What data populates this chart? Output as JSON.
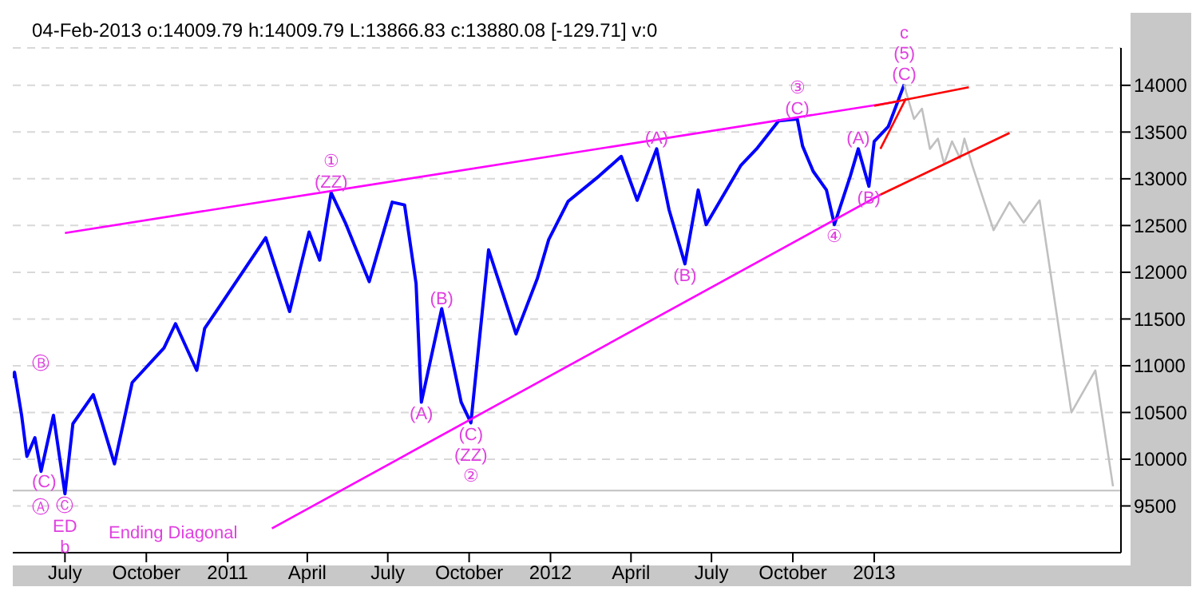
{
  "chart_data": {
    "type": "line",
    "title": "04-Feb-2013  o:14009.79 h:14009.79 L:13866.83 c:13880.08 [-129.71] v:0",
    "xlim": [
      "2010-05-03",
      "2013-10-07"
    ],
    "ylim": [
      9000,
      14400
    ],
    "xticks": [
      {
        "value": "2010-07-01",
        "label": "July"
      },
      {
        "value": "2010-10-01",
        "label": "October"
      },
      {
        "value": "2011-01-01",
        "label": "2011"
      },
      {
        "value": "2011-04-01",
        "label": "April"
      },
      {
        "value": "2011-07-01",
        "label": "July"
      },
      {
        "value": "2011-10-01",
        "label": "October"
      },
      {
        "value": "2012-01-01",
        "label": "2012"
      },
      {
        "value": "2012-04-01",
        "label": "April"
      },
      {
        "value": "2012-07-01",
        "label": "July"
      },
      {
        "value": "2012-10-01",
        "label": "October"
      },
      {
        "value": "2013-01-01",
        "label": "2013"
      }
    ],
    "yticks": [
      9500,
      10000,
      10500,
      11000,
      11500,
      12000,
      12500,
      13000,
      13500,
      14000
    ],
    "grid": "y",
    "legend": false,
    "marker": "none",
    "line_style": "solid",
    "series": [
      {
        "color": "#0000ff",
        "x": [
          "2010-05-03",
          "2010-05-05",
          "2010-05-13",
          "2010-05-19",
          "2010-05-28",
          "2010-06-04",
          "2010-06-18",
          "2010-07-01",
          "2010-07-10",
          "2010-08-02",
          "2010-08-11",
          "2010-08-26",
          "2010-09-15",
          "2010-10-21",
          "2010-11-03",
          "2010-11-27",
          "2010-12-06",
          "2010-12-21",
          "2011-02-13",
          "2011-03-12",
          "2011-04-03",
          "2011-04-15",
          "2011-04-28",
          "2011-05-14",
          "2011-06-10",
          "2011-07-06",
          "2011-07-20",
          "2011-08-02",
          "2011-08-08",
          "2011-08-31",
          "2011-09-22",
          "2011-10-03",
          "2011-10-23",
          "2011-11-23",
          "2011-12-17",
          "2011-12-30",
          "2012-01-21",
          "2012-02-25",
          "2012-03-21",
          "2012-04-08",
          "2012-04-30",
          "2012-05-14",
          "2012-06-01",
          "2012-06-16",
          "2012-06-25",
          "2012-08-03",
          "2012-08-21",
          "2012-09-15",
          "2012-10-06",
          "2012-10-12",
          "2012-10-24",
          "2012-11-08",
          "2012-11-17",
          "2012-12-05",
          "2012-12-14",
          "2012-12-26",
          "2013-01-01",
          "2013-01-17",
          "2013-02-04"
        ],
        "values": [
          10870,
          10930,
          10470,
          10030,
          10230,
          9870,
          10470,
          9630,
          10380,
          10690,
          10420,
          9950,
          10820,
          11190,
          11450,
          10950,
          11400,
          11610,
          12370,
          11580,
          12430,
          12130,
          12850,
          12530,
          11900,
          12750,
          12720,
          11880,
          10610,
          11610,
          10610,
          10390,
          12240,
          11340,
          11930,
          12350,
          12760,
          13030,
          13240,
          12770,
          13320,
          12670,
          12090,
          12880,
          12510,
          13140,
          13320,
          13620,
          13640,
          13350,
          13080,
          12880,
          12510,
          13030,
          13320,
          12920,
          13400,
          13560,
          14010
        ]
      },
      {
        "color": "#c0c0c0",
        "x": [
          "2013-02-04",
          "2013-02-06",
          "2013-02-15",
          "2013-02-24",
          "2013-03-05",
          "2013-03-14",
          "2013-03-21",
          "2013-03-30",
          "2013-04-08",
          "2013-04-13",
          "2013-04-22",
          "2013-05-16",
          "2013-06-03",
          "2013-06-19",
          "2013-07-07",
          "2013-08-12",
          "2013-09-08",
          "2013-09-28"
        ],
        "values": [
          14010,
          13930,
          13640,
          13750,
          13320,
          13430,
          13160,
          13400,
          13220,
          13430,
          13140,
          12450,
          12750,
          12530,
          12770,
          10500,
          10950,
          9710
        ]
      },
      {
        "color": "#ff00ff",
        "x": [
          "2010-07-01",
          "2013-01-30"
        ],
        "values": [
          12420,
          13830
        ]
      },
      {
        "color": "#ff00ff",
        "x": [
          "2011-02-20",
          "2013-01-08"
        ],
        "values": [
          9260,
          12830
        ]
      },
      {
        "color": "#ff0000",
        "x": [
          "2013-01-01",
          "2013-04-18"
        ],
        "values": [
          13780,
          13980
        ]
      },
      {
        "color": "#ff0000",
        "x": [
          "2013-01-08",
          "2013-06-03"
        ],
        "values": [
          12830,
          13490
        ]
      },
      {
        "color": "#ff0000",
        "x": [
          "2013-01-08",
          "2013-02-06"
        ],
        "values": [
          13320,
          13860
        ]
      }
    ],
    "ref_lines": [
      {
        "axis": "y",
        "value": 9665,
        "color": "#c0c0c0"
      }
    ],
    "annotations": [
      "Ⓑ",
      "(C)",
      "Ⓐ",
      "Ending Diagonal",
      {
        "text": "(ZZ)",
        "x": "2011-04-28",
        "y": 12850
      },
      {
        "text": "①",
        "x": "2011-04-28",
        "y": 12850
      },
      {
        "text": "(B)",
        "x": "2011-08-31",
        "y": 11610
      },
      {
        "text": "(A)",
        "x": "2011-08-08",
        "y": 10610
      },
      {
        "text": "(C)",
        "x": "2011-10-03",
        "y": 10390
      },
      {
        "text": "(ZZ)",
        "x": "2011-10-03",
        "y": 10390
      },
      {
        "text": "②",
        "x": "2011-10-03",
        "y": 10390
      },
      {
        "text": "(A)",
        "x": "2012-04-30",
        "y": 13320
      },
      {
        "text": "(B)",
        "x": "2012-06-01",
        "y": 12090
      },
      {
        "text": "(C)",
        "x": "2012-10-06",
        "y": 13640
      },
      {
        "text": "③",
        "x": "2012-10-06",
        "y": 13640
      },
      {
        "text": "(A)",
        "x": "2012-12-14",
        "y": 13320
      },
      {
        "text": "(B)",
        "x": "2012-12-26",
        "y": 12920
      },
      {
        "text": "④",
        "x": "2012-11-17",
        "y": 12510
      },
      {
        "text": "(C)",
        "x": "2013-02-04",
        "y": 14010
      },
      {
        "text": "(5)",
        "x": "2013-02-04",
        "y": 14010
      },
      {
        "text": "c",
        "x": "2013-02-04",
        "y": 14010
      },
      {
        "text": "Ⓒ",
        "x": "2010-07-01",
        "y": 9630
      },
      {
        "text": "ED",
        "x": "2010-07-01",
        "y": 9630
      },
      {
        "text": "b",
        "x": "2010-07-01",
        "y": 9630
      }
    ]
  }
}
